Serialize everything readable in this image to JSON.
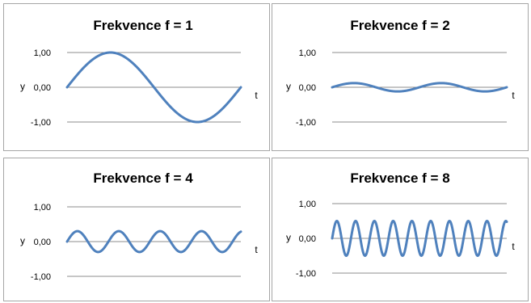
{
  "chart_data": [
    {
      "type": "line",
      "title": "Frekvence f = 1",
      "xlabel": "t",
      "ylabel": "y",
      "frequency": 1,
      "amplitude": 1.0,
      "cycles": 1,
      "ylim": [
        -1.0,
        1.0
      ],
      "yticks": [
        "1,00",
        "0,00",
        "-1,00"
      ],
      "grid": "horizontal",
      "series": [
        {
          "function": "y = sin(2*pi*f*t)",
          "color": "#4f81bd"
        }
      ]
    },
    {
      "type": "line",
      "title": "Frekvence f = 2",
      "xlabel": "t",
      "ylabel": "y",
      "frequency": 2,
      "amplitude": 0.12,
      "cycles": 2,
      "ylim": [
        -1.0,
        1.0
      ],
      "yticks": [
        "1,00",
        "0,00",
        "-1,00"
      ],
      "grid": "horizontal",
      "series": [
        {
          "function": "y = A*sin(2*pi*f*t)",
          "color": "#4f81bd"
        }
      ]
    },
    {
      "type": "line",
      "title": "Frekvence f = 4",
      "xlabel": "t",
      "ylabel": "y",
      "frequency": 4,
      "amplitude": 0.3,
      "cycles": 4.2,
      "ylim": [
        -1.0,
        1.0
      ],
      "yticks": [
        "1,00",
        "0,00",
        "-1,00"
      ],
      "grid": "horizontal",
      "series": [
        {
          "function": "y = A*sin(2*pi*f*t)",
          "color": "#4f81bd"
        }
      ]
    },
    {
      "type": "line",
      "title": "Frekvence f = 8",
      "xlabel": "t",
      "ylabel": "y",
      "frequency": 8,
      "amplitude": 0.5,
      "cycles": 9.3,
      "ylim": [
        -1.0,
        1.0
      ],
      "yticks": [
        "1,00",
        "0,00",
        "-1,00"
      ],
      "grid": "horizontal",
      "series": [
        {
          "function": "y = A*sin(2*pi*f*t)",
          "color": "#4f81bd"
        }
      ]
    }
  ]
}
